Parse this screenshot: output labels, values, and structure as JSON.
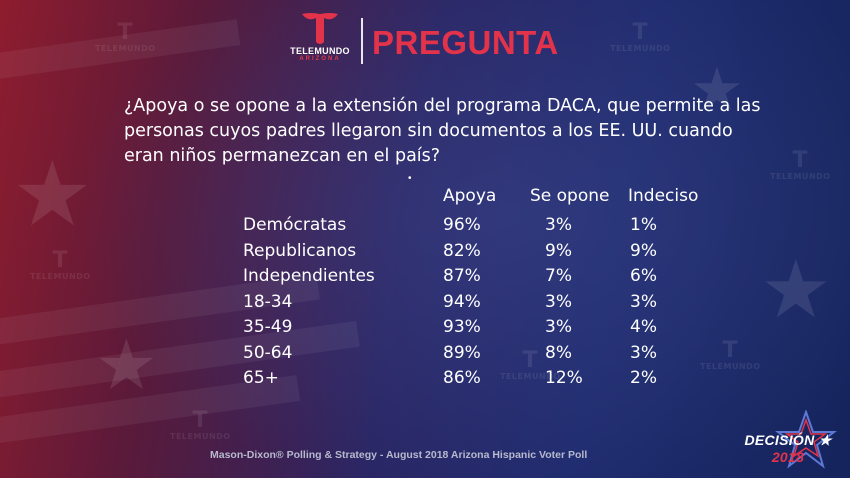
{
  "header": {
    "brand": "TELEMUNDO",
    "brand_sub": "ARIZONA",
    "label": "PREGUNTA"
  },
  "question": "¿Apoya o se opone a la extensión del programa DACA, que permite a las personas cuyos padres llegaron sin documentos a los EE. UU. cuando eran niños permanezcan en el país?",
  "bullet": "•",
  "chart_data": {
    "type": "table",
    "columns": [
      "Apoya",
      "Se opone",
      "Indeciso"
    ],
    "rows": [
      {
        "label": "Demócratas",
        "values": [
          "96%",
          "3%",
          "1%"
        ]
      },
      {
        "label": "Republicanos",
        "values": [
          "82%",
          "9%",
          "9%"
        ]
      },
      {
        "label": "Independientes",
        "values": [
          "87%",
          "7%",
          "6%"
        ]
      },
      {
        "label": "18-34",
        "values": [
          "94%",
          "3%",
          "3%"
        ]
      },
      {
        "label": "35-49",
        "values": [
          "93%",
          "3%",
          "4%"
        ]
      },
      {
        "label": "50-64",
        "values": [
          "89%",
          "8%",
          "3%"
        ]
      },
      {
        "label": "65+",
        "values": [
          "86%",
          "12%",
          "2%"
        ]
      }
    ]
  },
  "footer": "Mason-Dixon® Polling & Strategy - August 2018 Arizona Hispanic Voter Poll",
  "election": {
    "word": "DECISIÓN",
    "year": "2018"
  },
  "colors": {
    "accent_red": "#e2334a",
    "background_blue": "#1e2b6e",
    "background_red": "#8e1c2e"
  },
  "icons": [
    "telemundo-logo-icon",
    "star-icon"
  ]
}
